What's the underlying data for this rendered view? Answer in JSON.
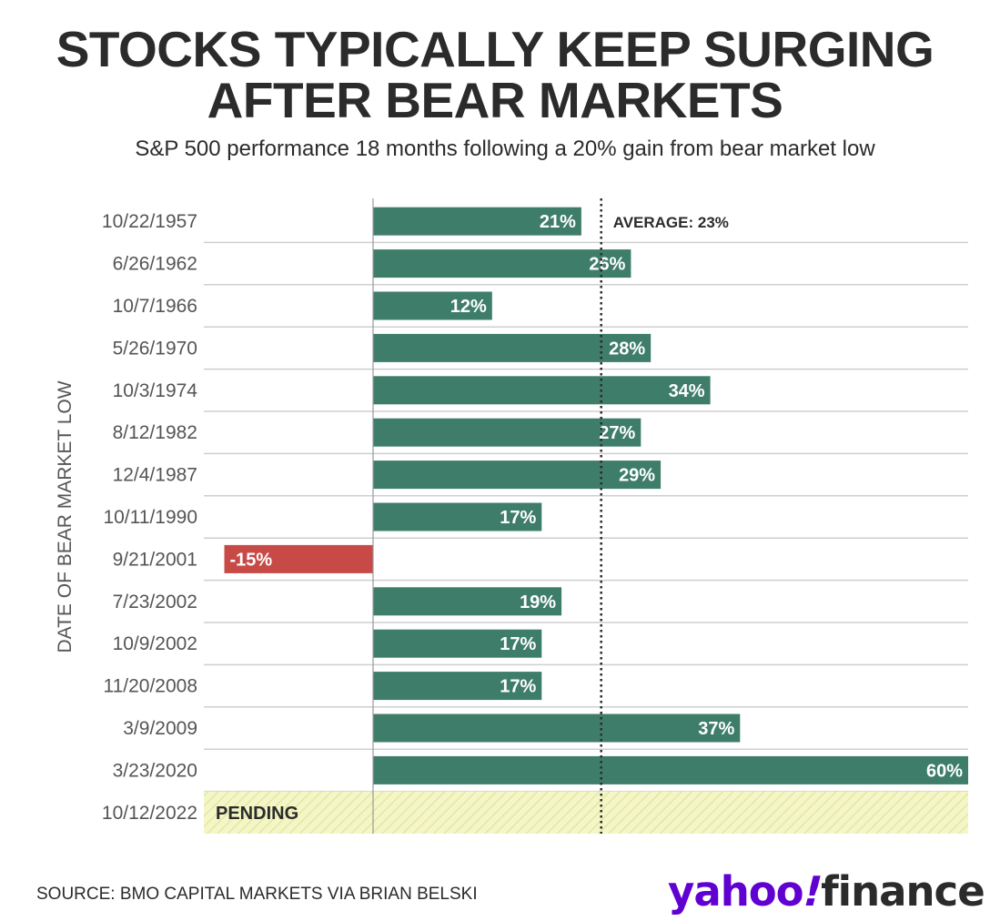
{
  "title_line1": "STOCKS TYPICALLY KEEP SURGING",
  "title_line2": "AFTER BEAR MARKETS",
  "subtitle": "S&P 500 performance 18 months following a 20% gain from bear market low",
  "source": "SOURCE: BMO CAPITAL MARKETS VIA BRIAN BELSKI",
  "logo": {
    "yahoo": "yahoo",
    "bang": "!",
    "finance": "finance"
  },
  "colors": {
    "positive": "#3f7d6b",
    "negative": "#c84a47",
    "pending_fill": "#f4f6c8",
    "pending_hatch": "#e3e8a0",
    "text": "#2b2b2b",
    "axis_label": "#555555",
    "grid": "#cfcfcf"
  },
  "chart_data": {
    "type": "bar",
    "orientation": "horizontal",
    "ylabel": "DATE OF BEAR MARKET LOW",
    "categories": [
      "10/22/1957",
      "6/26/1962",
      "10/7/1966",
      "5/26/1970",
      "10/3/1974",
      "8/12/1982",
      "12/4/1987",
      "10/11/1990",
      "9/21/2001",
      "7/23/2002",
      "10/9/2002",
      "11/20/2008",
      "3/9/2009",
      "3/23/2020",
      "10/12/2022"
    ],
    "values": [
      21,
      26,
      12,
      28,
      34,
      27,
      29,
      17,
      -15,
      19,
      17,
      17,
      37,
      60,
      null
    ],
    "data_labels": [
      "21%",
      "26%",
      "12%",
      "28%",
      "34%",
      "27%",
      "29%",
      "17%",
      "-15%",
      "19%",
      "17%",
      "17%",
      "37%",
      "60%",
      "PENDING"
    ],
    "unit": "%",
    "xlim": [
      -17,
      60
    ],
    "reference_line": {
      "value": 23,
      "label": "AVERAGE: 23%",
      "style": "dotted"
    },
    "pending_category": "10/12/2022",
    "pending_label": "PENDING"
  }
}
